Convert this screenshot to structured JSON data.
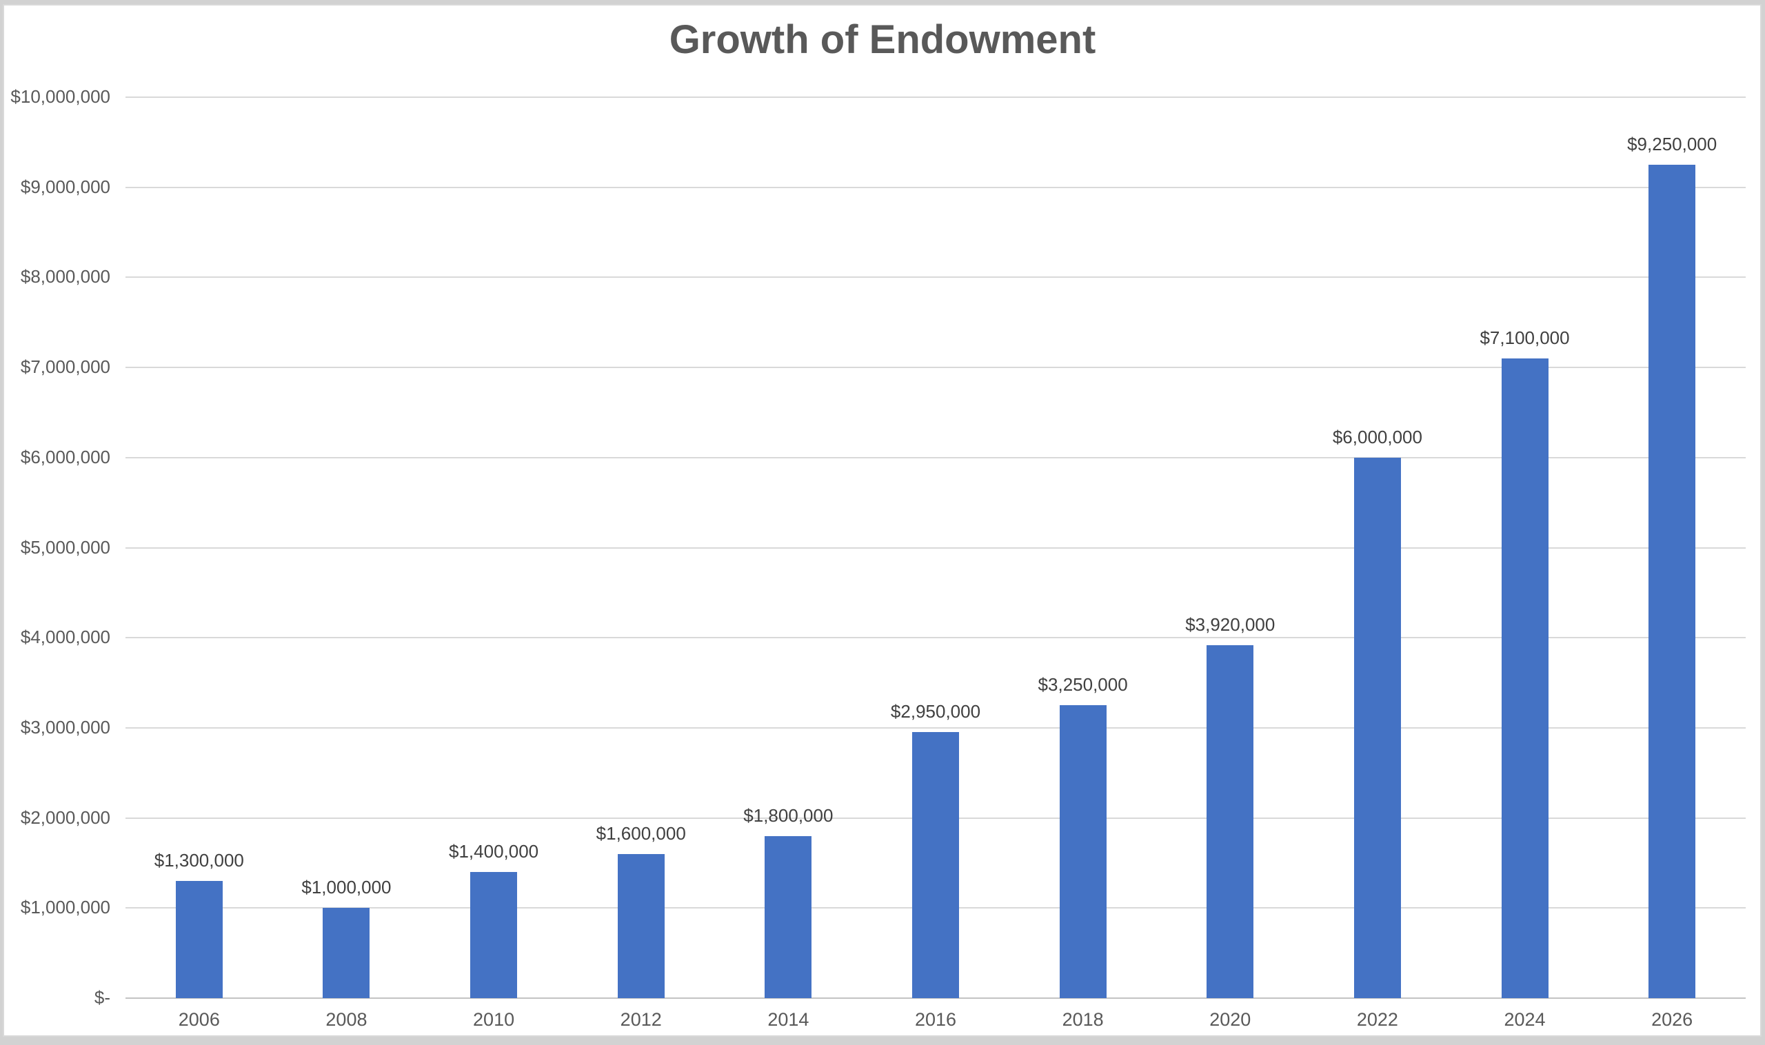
{
  "chart": {
    "title": "Growth of Endowment",
    "colors": {
      "bar": "#4472C4",
      "gridline": "#D9D9D9",
      "axis_line": "#C3C3C3",
      "title_text": "#595959",
      "tick_text": "#595959",
      "data_label_text": "#404040",
      "frame_border": "#D9D9D9",
      "page_edge": "#D2D2D2",
      "background": "#FFFFFF"
    }
  },
  "chart_data": {
    "type": "bar",
    "title": "Growth of Endowment",
    "categories": [
      "2006",
      "2008",
      "2010",
      "2012",
      "2014",
      "2016",
      "2018",
      "2020",
      "2022",
      "2024",
      "2026"
    ],
    "values": [
      1300000,
      1000000,
      1400000,
      1600000,
      1800000,
      2950000,
      3250000,
      3920000,
      6000000,
      7100000,
      9250000
    ],
    "data_labels": [
      "$1,300,000",
      "$1,000,000",
      "$1,400,000",
      "$1,600,000",
      "$1,800,000",
      "$2,950,000",
      "$3,250,000",
      "$3,920,000",
      "$6,000,000",
      "$7,100,000",
      "$9,250,000"
    ],
    "y_tick_labels": [
      "$10,000,000",
      "$9,000,000",
      "$8,000,000",
      "$7,000,000",
      "$6,000,000",
      "$5,000,000",
      "$4,000,000",
      "$3,000,000",
      "$2,000,000",
      "$1,000,000",
      "$-"
    ],
    "y_tick_values": [
      10000000,
      9000000,
      8000000,
      7000000,
      6000000,
      5000000,
      4000000,
      3000000,
      2000000,
      1000000,
      0
    ],
    "ylim": [
      0,
      10000000
    ],
    "xlabel": "",
    "ylabel": "",
    "grid": "horizontal",
    "legend": "none"
  }
}
